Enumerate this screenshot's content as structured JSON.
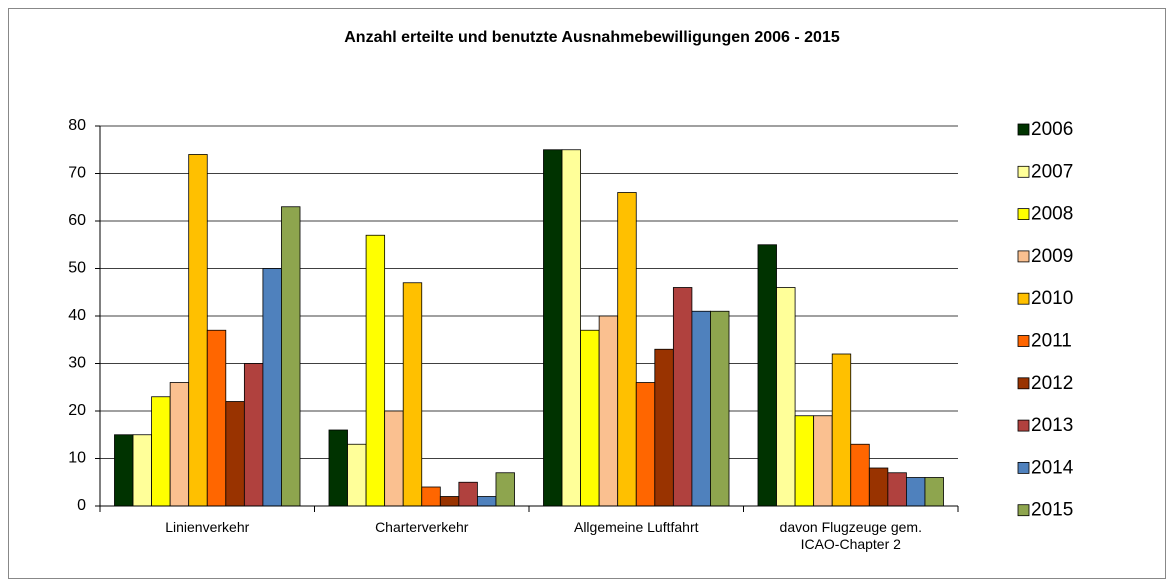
{
  "chart_data": {
    "type": "bar",
    "title": "Anzahl erteilte  und benutzte Ausnahmebewilligungen 2006 - 2015",
    "categories": [
      "Linienverkehr",
      "Charterverkehr",
      "Allgemeine Luftfahrt",
      "davon Flugzeuge gem. ICAO-Chapter 2"
    ],
    "series": [
      {
        "name": "2006",
        "color": "#003300",
        "values": [
          15,
          16,
          75,
          55
        ]
      },
      {
        "name": "2007",
        "color": "#ffff99",
        "values": [
          15,
          13,
          75,
          46
        ]
      },
      {
        "name": "2008",
        "color": "#ffff00",
        "values": [
          23,
          57,
          37,
          19
        ]
      },
      {
        "name": "2009",
        "color": "#fac090",
        "values": [
          26,
          20,
          40,
          19
        ]
      },
      {
        "name": "2010",
        "color": "#ffc000",
        "values": [
          74,
          47,
          66,
          32
        ]
      },
      {
        "name": "2011",
        "color": "#ff6600",
        "values": [
          37,
          4,
          26,
          13
        ]
      },
      {
        "name": "2012",
        "color": "#993300",
        "values": [
          22,
          2,
          33,
          8
        ]
      },
      {
        "name": "2013",
        "color": "#b0413e",
        "values": [
          30,
          5,
          46,
          7
        ]
      },
      {
        "name": "2014",
        "color": "#4f81bd",
        "values": [
          50,
          2,
          41,
          6
        ]
      },
      {
        "name": "2015",
        "color": "#8ea54e",
        "values": [
          63,
          7,
          41,
          6
        ]
      }
    ],
    "ylim": [
      0,
      80
    ],
    "yticks": [
      0,
      10,
      20,
      30,
      40,
      50,
      60,
      70,
      80
    ],
    "grid": true,
    "legend": "right"
  }
}
